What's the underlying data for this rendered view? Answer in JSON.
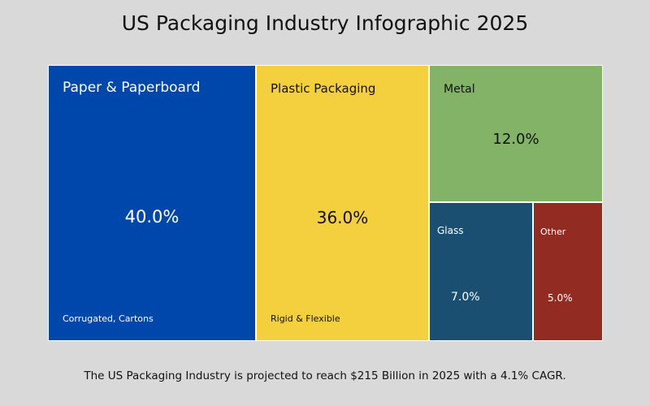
{
  "chart_data": {
    "type": "treemap",
    "title": "US Packaging Industry Infographic 2025",
    "items": [
      {
        "name": "Paper & Paperboard",
        "value": 40.0,
        "label": "40.0%",
        "subtitle": "Corrugated, Cartons",
        "color": "#0047ab",
        "text_color": "#ffffff"
      },
      {
        "name": "Plastic Packaging",
        "value": 36.0,
        "label": "36.0%",
        "subtitle": "Rigid & Flexible",
        "color": "#f4d03f",
        "text_color": "#111111"
      },
      {
        "name": "Metal",
        "value": 12.0,
        "label": "12.0%",
        "color": "#82b366",
        "text_color": "#111111"
      },
      {
        "name": "Glass",
        "value": 7.0,
        "label": "7.0%",
        "color": "#1b4f72",
        "text_color": "#ffffff"
      },
      {
        "name": "Other",
        "value": 5.0,
        "label": "5.0%",
        "color": "#922b21",
        "text_color": "#ffffff"
      }
    ],
    "footnote": "The US Packaging Industry is projected to reach $215 Billion in 2025 with a 4.1% CAGR."
  }
}
